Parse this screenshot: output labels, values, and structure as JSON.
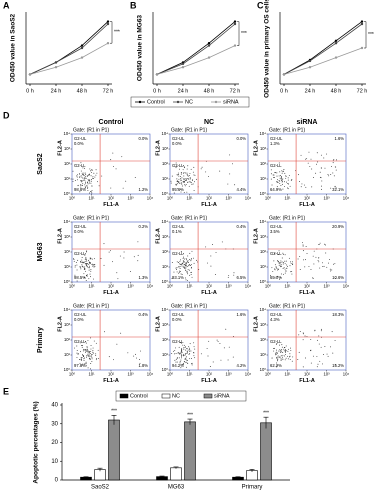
{
  "chart_data": [
    {
      "type": "line",
      "label": "A",
      "ylabel": "OD450 value in SaoS2",
      "annotation": "***",
      "categories": [
        "0 h",
        "24 h",
        "48 h",
        "72 h"
      ],
      "ylim": [
        0,
        1.5
      ],
      "series": [
        {
          "name": "Control",
          "color": "#000000",
          "values": [
            0.2,
            0.45,
            0.8,
            1.3
          ]
        },
        {
          "name": "NC",
          "color": "#444444",
          "values": [
            0.2,
            0.45,
            0.75,
            1.25
          ]
        },
        {
          "name": "siRNA",
          "color": "#999999",
          "values": [
            0.2,
            0.35,
            0.55,
            0.85
          ]
        }
      ]
    },
    {
      "type": "line",
      "label": "B",
      "ylabel": "OD450 value in MG63",
      "annotation": "***",
      "categories": [
        "0 h",
        "24 h",
        "48 h",
        "72 h"
      ],
      "ylim": [
        0,
        1.5
      ],
      "series": [
        {
          "color": "#000000",
          "values": [
            0.2,
            0.45,
            0.85,
            1.3
          ]
        },
        {
          "color": "#444444",
          "values": [
            0.2,
            0.42,
            0.8,
            1.25
          ]
        },
        {
          "color": "#999999",
          "values": [
            0.2,
            0.35,
            0.55,
            0.8
          ]
        }
      ]
    },
    {
      "type": "line",
      "label": "C",
      "ylabel": "OD450 value in primary OS cells",
      "annotation": "***",
      "categories": [
        "0 h",
        "24 h",
        "48 h",
        "72 h"
      ],
      "ylim": [
        0,
        1.5
      ],
      "series": [
        {
          "color": "#000000",
          "values": [
            0.2,
            0.5,
            0.9,
            1.3
          ]
        },
        {
          "color": "#444444",
          "values": [
            0.2,
            0.48,
            0.85,
            1.25
          ]
        },
        {
          "color": "#999999",
          "values": [
            0.2,
            0.35,
            0.55,
            0.75
          ]
        }
      ]
    },
    {
      "type": "flow",
      "label": "D",
      "columns": [
        "Control",
        "NC",
        "siRNA"
      ],
      "rows": [
        "SaoS2",
        "MG63",
        "Primary"
      ],
      "gate": "Gate: (R1 in P1)",
      "ul_name": "G2-UL",
      "ll_name": "G2-LL",
      "xlabel": "FL1-A",
      "ylabel": "FL2-A",
      "log_scale": true,
      "xlim": [
        1,
        10000
      ],
      "ylim": [
        1,
        10000
      ],
      "xticks": [
        {
          "value": 1,
          "label": "10⁰"
        },
        {
          "value": 10,
          "label": "10¹"
        },
        {
          "value": 100,
          "label": "10²"
        },
        {
          "value": 1000,
          "label": "10³"
        },
        {
          "value": 10000,
          "label": "10⁴"
        }
      ],
      "yticks": [
        {
          "value": 1,
          "label": "10⁰"
        },
        {
          "value": 10,
          "label": "10¹"
        },
        {
          "value": 100,
          "label": "10²"
        },
        {
          "value": 1000,
          "label": "10³"
        },
        {
          "value": 10000,
          "label": "10⁴"
        }
      ],
      "panels": [
        [
          [
            "0.0%",
            "0.0%",
            "98.8%",
            "1.2%"
          ],
          [
            "0.0%",
            "0.0%",
            "95.6%",
            "4.4%"
          ],
          [
            "1.3%",
            "1.6%",
            "64.9%",
            "32.1%"
          ]
        ],
        [
          [
            "0.0%",
            "0.2%",
            "98.5%",
            "1.3%"
          ],
          [
            "0.1%",
            "0.4%",
            "93.1%",
            "6.5%"
          ],
          [
            "3.5%",
            "20.9%",
            "65.0%",
            "10.6%"
          ]
        ],
        [
          [
            "0.0%",
            "0.4%",
            "97.8%",
            "1.8%"
          ],
          [
            "0.0%",
            "1.6%",
            "94.2%",
            "4.2%"
          ],
          [
            "4.3%",
            "18.3%",
            "62.2%",
            "15.2%"
          ]
        ]
      ]
    },
    {
      "type": "bar",
      "label": "E",
      "ylabel": "Apoptotic percentages (%)",
      "significance": "***",
      "categories": [
        "SaoS2",
        "MG63",
        "Primary"
      ],
      "ylim": [
        0,
        40
      ],
      "yticks": [
        0,
        10,
        20,
        30,
        40
      ],
      "series": [
        {
          "name": "Control",
          "color": "#000000",
          "values": [
            1.5,
            1.8,
            1.5
          ],
          "errors": [
            0.3,
            0.3,
            0.3
          ]
        },
        {
          "name": "NC",
          "color": "#ffffff",
          "values": [
            5.5,
            6.5,
            5
          ],
          "errors": [
            0.8,
            0.5,
            0.7
          ]
        },
        {
          "name": "siRNA",
          "color": "#8c8c8c",
          "values": [
            32,
            31,
            30.5
          ],
          "errors": [
            2.5,
            1.5,
            3
          ]
        }
      ]
    }
  ]
}
